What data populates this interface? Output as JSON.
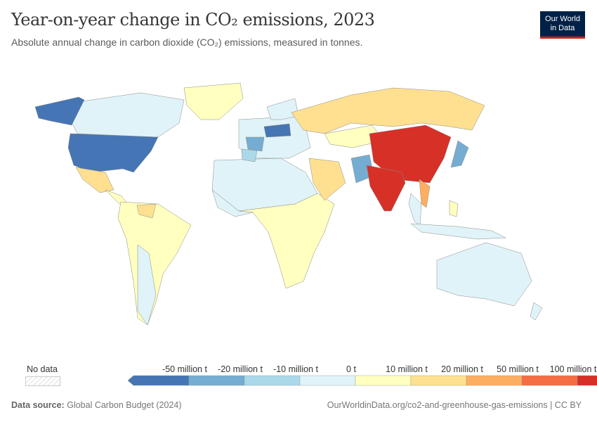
{
  "header": {
    "title": "Year-on-year change in CO₂ emissions, 2023",
    "subtitle": "Absolute annual change in carbon dioxide (CO₂) emissions, measured in tonnes.",
    "logo": "Our World in Data"
  },
  "chart_data": {
    "type": "choropleth-map",
    "title": "Year-on-year change in CO₂ emissions, 2023",
    "unit": "tonnes",
    "legend": {
      "no_data_label": "No data",
      "tick_labels": [
        "-50 million t",
        "-20 million t",
        "-10 million t",
        "0 t",
        "10 million t",
        "20 million t",
        "50 million t",
        "100 million t"
      ],
      "bin_colors": [
        "#4575b4",
        "#74add1",
        "#abd9e9",
        "#e0f3f8",
        "#ffffbf",
        "#fee090",
        "#fdae61",
        "#f46d43",
        "#d73027"
      ]
    }
  },
  "footer": {
    "source_label": "Data source:",
    "source": "Global Carbon Budget (2024)",
    "url": "OurWorldinData.org/co2-and-greenhouse-gas-emissions | CC BY"
  }
}
